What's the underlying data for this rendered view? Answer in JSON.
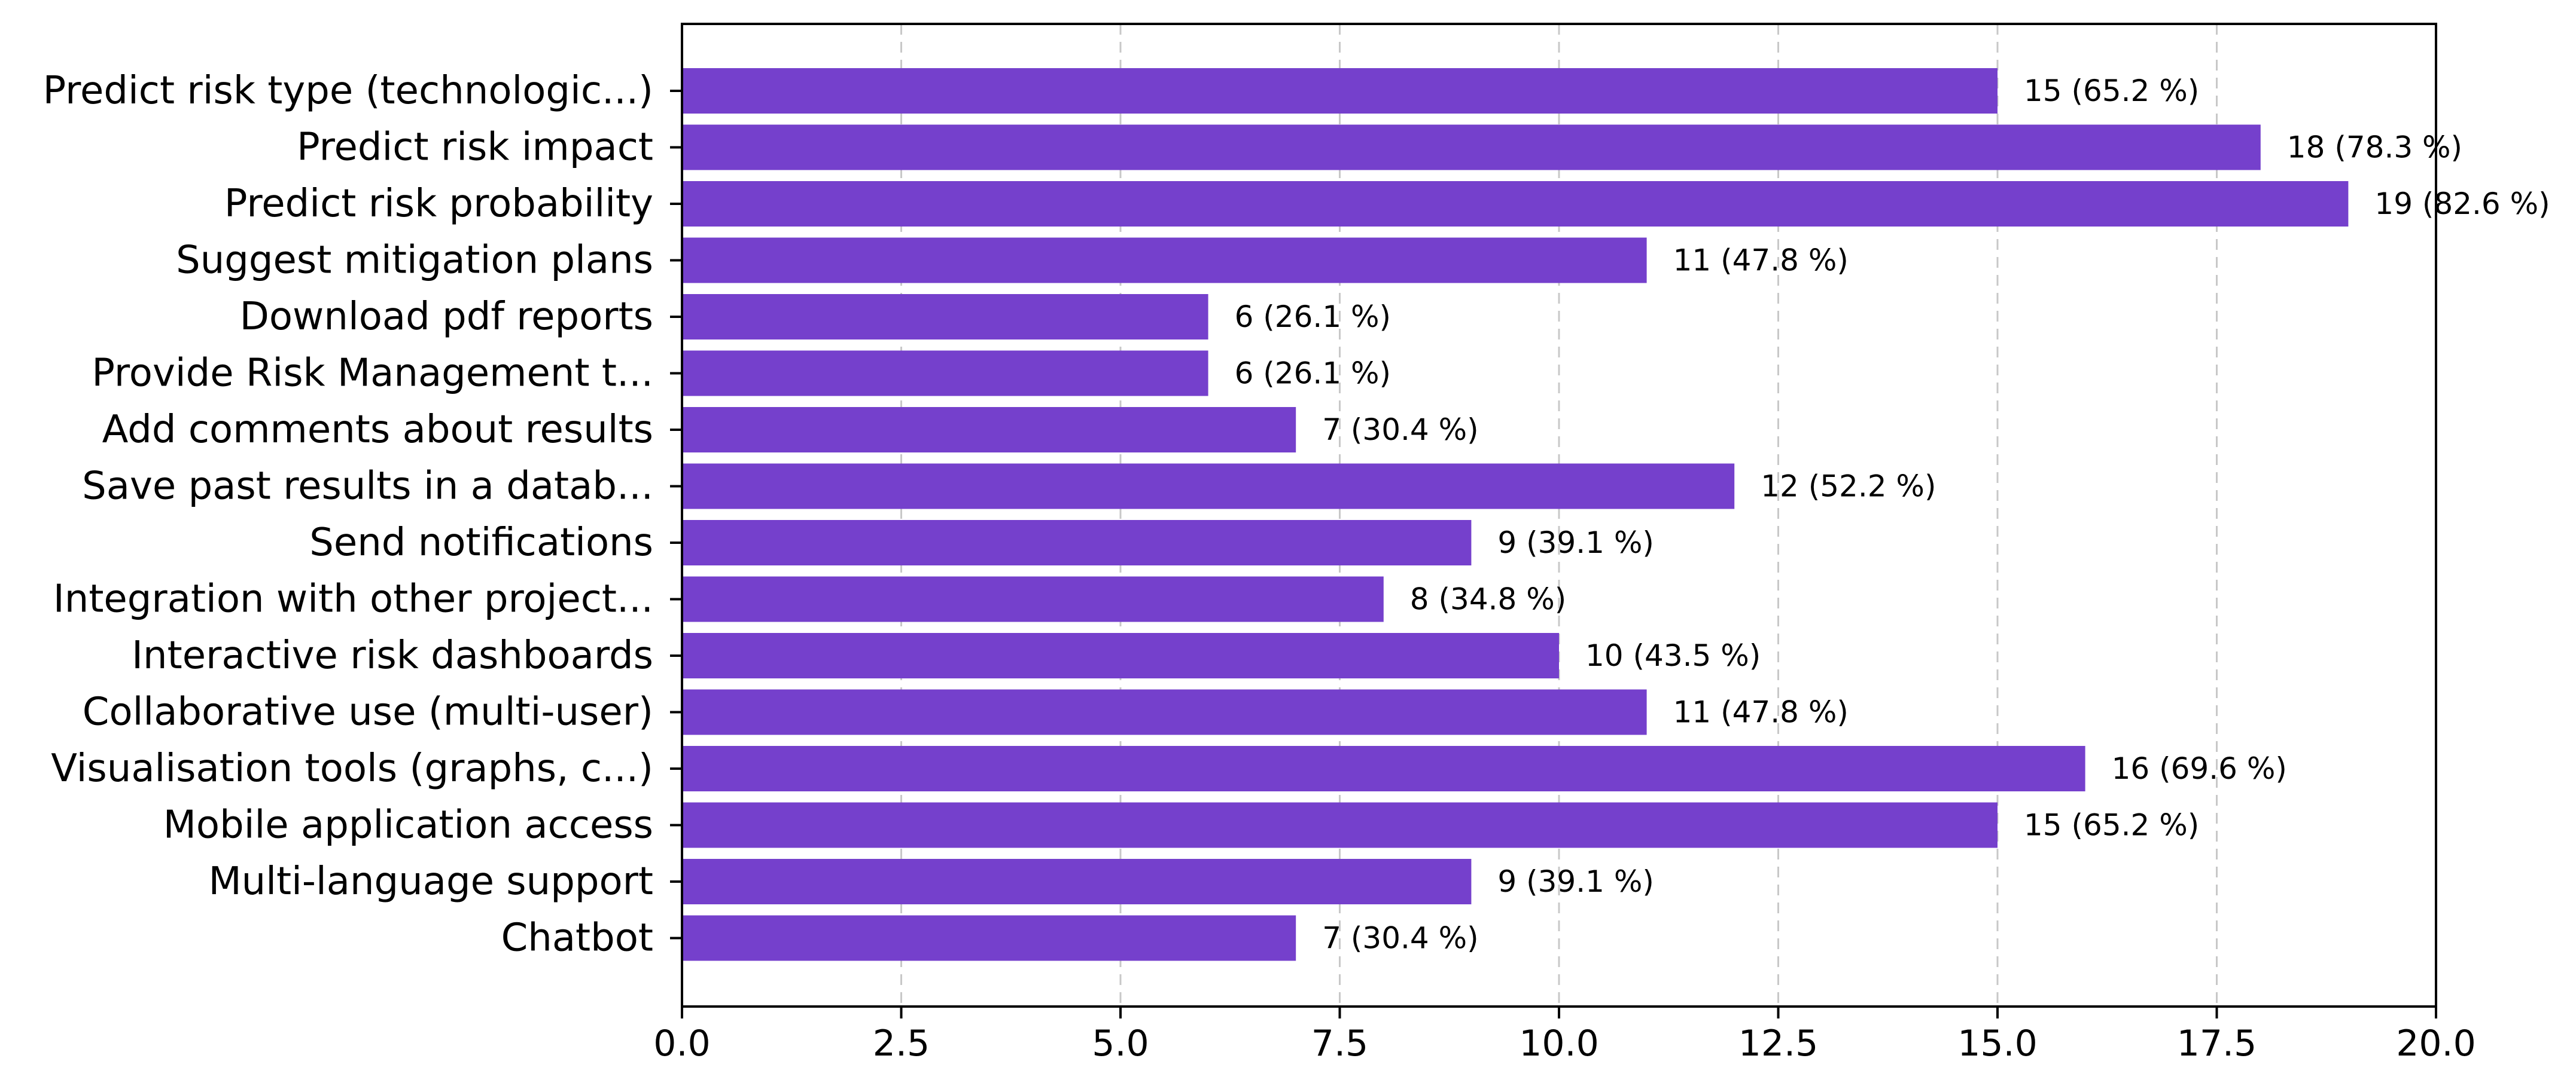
{
  "chart_data": {
    "type": "bar",
    "orientation": "horizontal",
    "title": "",
    "xlabel": "",
    "ylabel": "",
    "xlim": [
      0,
      20
    ],
    "xticks": [
      0,
      2.5,
      5,
      7.5,
      10,
      12.5,
      15,
      17.5,
      20
    ],
    "xtick_labels": [
      "0.0",
      "2.5",
      "5.0",
      "7.5",
      "10.0",
      "12.5",
      "15.0",
      "17.5",
      "20.0"
    ],
    "grid": "vertical dashed",
    "bar_color": "#7540cc",
    "categories": [
      "Predict risk type (technologic...)",
      "Predict risk impact",
      "Predict risk probability",
      "Suggest mitigation plans",
      "Download pdf reports",
      "Provide Risk Management t...",
      "Add comments about results",
      "Save past results in a datab...",
      "Send notifications",
      "Integration with other project...",
      "Interactive risk dashboards",
      "Collaborative use (multi-user)",
      "Visualisation tools (graphs, c...)",
      "Mobile application access",
      "Multi-language support",
      "Chatbot"
    ],
    "values": [
      15,
      18,
      19,
      11,
      6,
      6,
      7,
      12,
      9,
      8,
      10,
      11,
      16,
      15,
      9,
      7
    ],
    "data_labels": [
      "15 (65.2 %)",
      "18 (78.3 %)",
      "19 (82.6 %)",
      "11 (47.8 %)",
      "6 (26.1 %)",
      "6 (26.1 %)",
      "7 (30.4 %)",
      "12 (52.2 %)",
      "9 (39.1 %)",
      "8 (34.8 %)",
      "10 (43.5 %)",
      "11 (47.8 %)",
      "16 (69.6 %)",
      "15 (65.2 %)",
      "9 (39.1 %)",
      "7 (30.4 %)"
    ]
  }
}
